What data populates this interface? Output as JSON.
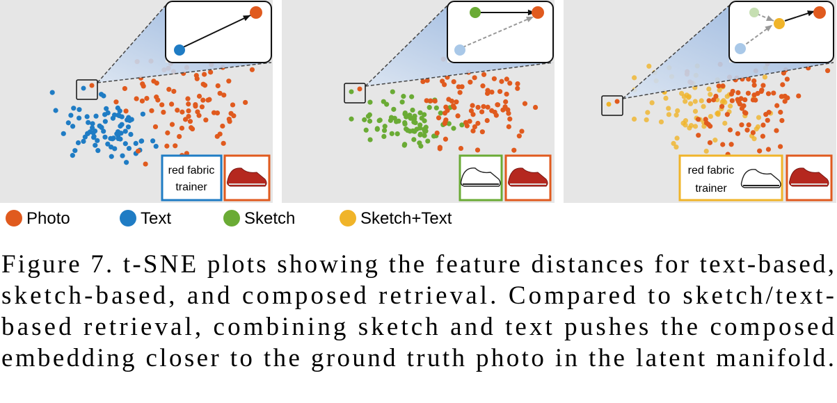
{
  "panels": [
    {
      "query_text": [
        "red fabric",
        "trainer"
      ]
    },
    {},
    {
      "query_text": [
        "red fabric",
        "trainer"
      ]
    }
  ],
  "legend": [
    "Photo",
    "Text",
    "Sketch",
    "Sketch+Text"
  ],
  "caption": [
    "Figure 7. t-SNE plots showing the feature distances for text-based,",
    "sketch-based, and composed retrieval.  Compared to sketch/text-",
    "based retrieval, combining sketch and text pushes the composed",
    "embedding closer to the ground truth photo in the latent manifold."
  ]
}
